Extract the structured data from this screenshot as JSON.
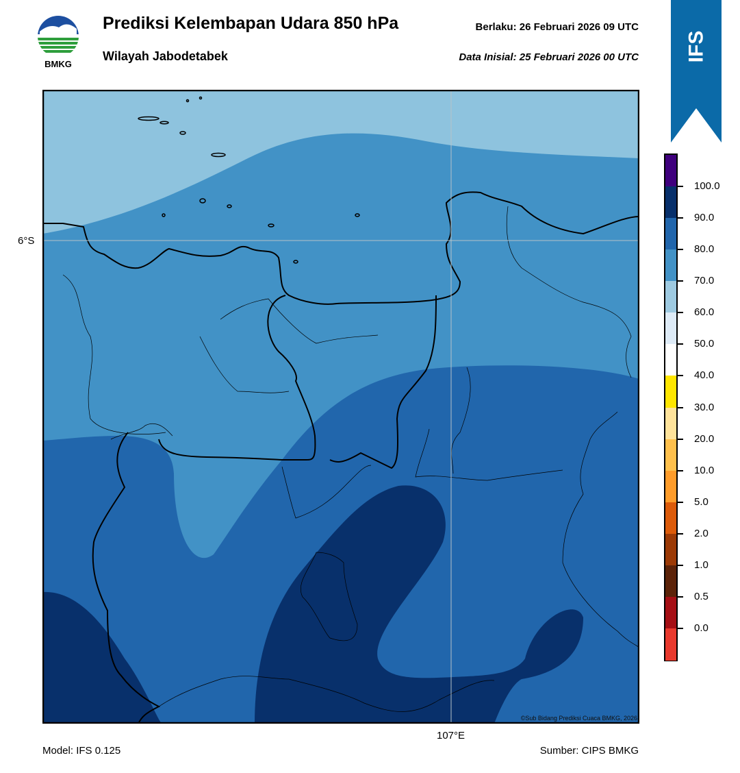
{
  "header": {
    "logo_text": "BMKG",
    "title": "Prediksi Kelembapan Udara 850 hPa",
    "subtitle": "Wilayah Jabodetabek",
    "valid": "Berlaku:  26 Februari 2026 09 UTC",
    "init": "Data Inisial:  25 Februari 2026 00 UTC"
  },
  "ribbon": {
    "label": "IFS",
    "color": "#0b6aa8"
  },
  "map": {
    "lat_label": "6°S",
    "lon_label": "107°E",
    "credit": "©Sub Bidang Prediksi Cuaca BMKG, 2026",
    "field_colors": {
      "60-70": "#8ec3de",
      "70-80": "#4292c6",
      "80-90": "#2166ac",
      "90-100": "#08306b"
    }
  },
  "footer": {
    "model": "Model: IFS 0.125",
    "source": "Sumber: CIPS BMKG"
  },
  "colorbar": {
    "segments": [
      {
        "from": "above",
        "color": "#3f007d"
      },
      {
        "from": "90-100",
        "color": "#08306b"
      },
      {
        "from": "80-90",
        "color": "#2166ac"
      },
      {
        "from": "70-80",
        "color": "#4292c6"
      },
      {
        "from": "60-70",
        "color": "#9ecae1"
      },
      {
        "from": "50-60",
        "color": "#deebf7"
      },
      {
        "from": "40-50",
        "color": "#ffffff"
      },
      {
        "from": "30-40",
        "color": "#ffe600"
      },
      {
        "from": "20-30",
        "color": "#ffe39b"
      },
      {
        "from": "10-20",
        "color": "#ffc04c"
      },
      {
        "from": "5-10",
        "color": "#ff9c2a"
      },
      {
        "from": "2-5",
        "color": "#dc5b0a"
      },
      {
        "from": "1-2",
        "color": "#9c3a06"
      },
      {
        "from": "0.5-1",
        "color": "#5c2309"
      },
      {
        "from": "0-0.5",
        "color": "#a50f15"
      },
      {
        "from": "below",
        "color": "#e8392d"
      }
    ],
    "labels": [
      "100.0",
      "90.0",
      "80.0",
      "70.0",
      "60.0",
      "50.0",
      "40.0",
      "30.0",
      "20.0",
      "10.0",
      "5.0",
      "2.0",
      "1.0",
      "0.5",
      "0.0"
    ]
  }
}
